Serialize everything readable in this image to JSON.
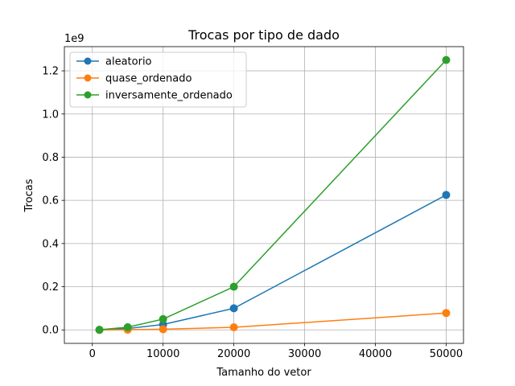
{
  "chart_data": {
    "type": "line",
    "title": "Trocas por tipo de dado",
    "xlabel": "Tamanho do vetor",
    "ylabel": "Trocas",
    "y_scale_label": "1e9",
    "y_scale": 1000000000,
    "xlim": [
      -3950,
      52450
    ],
    "ylim": [
      -62450000,
      1311950000
    ],
    "x_ticks": [
      0,
      10000,
      20000,
      30000,
      40000,
      50000
    ],
    "x_tick_labels": [
      "0",
      "10000",
      "20000",
      "30000",
      "40000",
      "50000"
    ],
    "y_ticks": [
      0.0,
      0.2,
      0.4,
      0.6,
      0.8,
      1.0,
      1.2
    ],
    "y_tick_labels": [
      "0.0",
      "0.2",
      "0.4",
      "0.6",
      "0.8",
      "1.0",
      "1.2"
    ],
    "grid": true,
    "legend_position": "top-left",
    "x": [
      1000,
      5000,
      10000,
      20000,
      50000
    ],
    "series": [
      {
        "name": "aleatorio",
        "color": "#1f77b4",
        "values": [
          250000,
          6250000,
          25000000,
          100000000,
          625000000
        ]
      },
      {
        "name": "quase_ordenado",
        "color": "#ff7f0e",
        "values": [
          30000,
          750000,
          3000000,
          12000000,
          78000000
        ]
      },
      {
        "name": "inversamente_ordenado",
        "color": "#2ca02c",
        "values": [
          500000,
          12500000,
          50000000,
          200000000,
          1250000000
        ]
      }
    ]
  }
}
